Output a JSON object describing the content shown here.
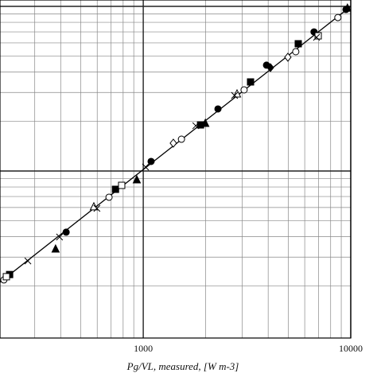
{
  "chart_data": {
    "type": "scatter",
    "log_x": true,
    "log_y": true,
    "grid": true,
    "xlabel": "Pg/VL, measured, [W m-3]",
    "xlim": [
      204,
      10000
    ],
    "ylim": [
      96.7,
      10930
    ],
    "xticks": [
      1000,
      10000
    ],
    "x_minor_grid": [
      300,
      400,
      500,
      600,
      700,
      800,
      900,
      2000,
      3000,
      4000,
      5000,
      6000,
      7000,
      8000,
      9000
    ],
    "y_major_grid": [
      1000,
      10000
    ],
    "y_minor_grid": [
      200,
      300,
      400,
      500,
      600,
      700,
      800,
      900,
      2000,
      3000,
      4000,
      5000,
      6000,
      7000,
      8000,
      9000
    ],
    "reference_line": {
      "x": [
        204,
        10000
      ],
      "y": [
        211,
        10000
      ],
      "color": "#000"
    },
    "series": [
      {
        "marker": "circle",
        "filled": false,
        "color": "#000",
        "x": [
          213,
          684,
          1528,
          3062,
          5433,
          8670
        ],
        "y": [
          218,
          693,
          1560,
          3110,
          5306,
          8551
        ]
      },
      {
        "marker": "circle",
        "filled": true,
        "color": "#000",
        "x": [
          425,
          1091,
          2291,
          3926,
          6653,
          9484
        ],
        "y": [
          425,
          1143,
          2382,
          4395,
          6998,
          9572
        ]
      },
      {
        "marker": "square",
        "filled": true,
        "color": "#000",
        "x": [
          227,
          735,
          1888,
          3289,
          5585
        ],
        "y": [
          235,
          774,
          1905,
          3475,
          5929
        ]
      },
      {
        "marker": "square",
        "filled": false,
        "color": "#000",
        "x": [
          219,
          787,
          6966
        ],
        "y": [
          228,
          818,
          6622
        ]
      },
      {
        "marker": "triangle",
        "filled": true,
        "color": "#000",
        "x": [
          378,
          931,
          1991,
          9638
        ],
        "y": [
          336,
          885,
          1950,
          9772
        ]
      },
      {
        "marker": "triangle",
        "filled": false,
        "color": "#000",
        "x": [
          578,
          2831
        ],
        "y": [
          607,
          2943
        ]
      },
      {
        "marker": "diamond",
        "filled": false,
        "color": "#000",
        "x": [
          1396,
          4977
        ],
        "y": [
          1476,
          4909
        ]
      },
      {
        "marker": "diamond",
        "filled": true,
        "color": "#000",
        "x": [
          4102
        ],
        "y": [
          4246
        ]
      },
      {
        "marker": "cross",
        "filled": false,
        "color": "#000",
        "x": [
          278,
          395,
          598,
          1026,
          1791,
          2754,
          6839
        ],
        "y": [
          284,
          397,
          593,
          1057,
          1884,
          2877,
          6486
        ]
      }
    ]
  }
}
